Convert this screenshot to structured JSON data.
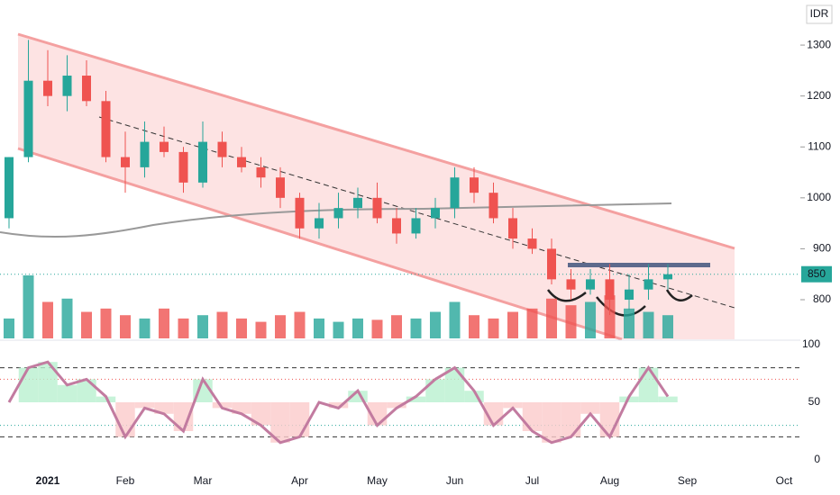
{
  "chart_data": {
    "type": "candlestick",
    "currency": "IDR",
    "categories": [
      null,
      null,
      "2021",
      null,
      null,
      null,
      "Feb",
      null,
      null,
      null,
      "Mar",
      null,
      null,
      null,
      null,
      "Apr",
      null,
      null,
      null,
      "May",
      null,
      null,
      null,
      "Jun",
      null,
      null,
      null,
      "Jul",
      null,
      null,
      null,
      "Aug",
      null,
      null,
      null,
      "Sep",
      null,
      null,
      null,
      null,
      "Oct"
    ],
    "open": [
      960,
      1080,
      1230,
      1200,
      1240,
      1190,
      1080,
      1060,
      1110,
      1090,
      1030,
      1110,
      1080,
      1060,
      1040,
      1000,
      940,
      960,
      980,
      1000,
      960,
      930,
      960,
      980,
      1040,
      1010,
      960,
      920,
      900,
      840,
      820,
      840,
      800,
      820,
      840,
      null,
      null,
      null,
      null,
      null,
      null
    ],
    "high": [
      1080,
      1310,
      1290,
      1280,
      1270,
      1210,
      1130,
      1150,
      1140,
      1100,
      1150,
      1130,
      1100,
      1080,
      1060,
      1010,
      990,
      1010,
      1020,
      1030,
      980,
      980,
      1000,
      1060,
      1060,
      1030,
      980,
      940,
      920,
      860,
      860,
      870,
      850,
      870,
      870,
      null,
      null,
      null,
      null,
      null,
      null
    ],
    "low": [
      940,
      1070,
      1180,
      1170,
      1180,
      1070,
      1010,
      1040,
      1080,
      1010,
      1020,
      1060,
      1050,
      1020,
      980,
      920,
      920,
      940,
      960,
      950,
      910,
      920,
      940,
      960,
      990,
      950,
      900,
      890,
      830,
      800,
      810,
      770,
      780,
      800,
      820,
      null,
      null,
      null,
      null,
      null,
      null
    ],
    "close": [
      1080,
      1230,
      1200,
      1240,
      1190,
      1080,
      1060,
      1110,
      1090,
      1030,
      1110,
      1080,
      1060,
      1040,
      1000,
      940,
      960,
      980,
      1000,
      960,
      930,
      960,
      980,
      1040,
      1010,
      960,
      920,
      900,
      840,
      820,
      840,
      800,
      820,
      840,
      850,
      null,
      null,
      null,
      null,
      null,
      null
    ],
    "ylim": [
      724,
      1362
    ],
    "yticks": [
      800,
      900,
      1000,
      1100,
      1200,
      1300
    ],
    "last_price": 850,
    "volume": [
      30,
      95,
      55,
      60,
      40,
      45,
      35,
      30,
      45,
      30,
      35,
      40,
      30,
      25,
      35,
      40,
      30,
      25,
      30,
      28,
      35,
      30,
      40,
      55,
      35,
      30,
      40,
      45,
      60,
      50,
      55,
      65,
      45,
      40,
      35,
      null,
      null,
      null,
      null,
      null,
      null
    ],
    "oscillator": {
      "values": [
        50,
        80,
        85,
        65,
        70,
        55,
        20,
        45,
        40,
        25,
        70,
        45,
        40,
        30,
        15,
        20,
        50,
        45,
        60,
        30,
        45,
        55,
        70,
        80,
        60,
        30,
        45,
        25,
        15,
        20,
        40,
        20,
        55,
        80,
        55,
        null,
        null,
        null,
        null,
        null,
        null
      ],
      "ylim": [
        0,
        100
      ],
      "yticks": [
        0,
        50,
        100
      ],
      "levels": [
        80,
        70,
        30,
        20
      ]
    }
  }
}
